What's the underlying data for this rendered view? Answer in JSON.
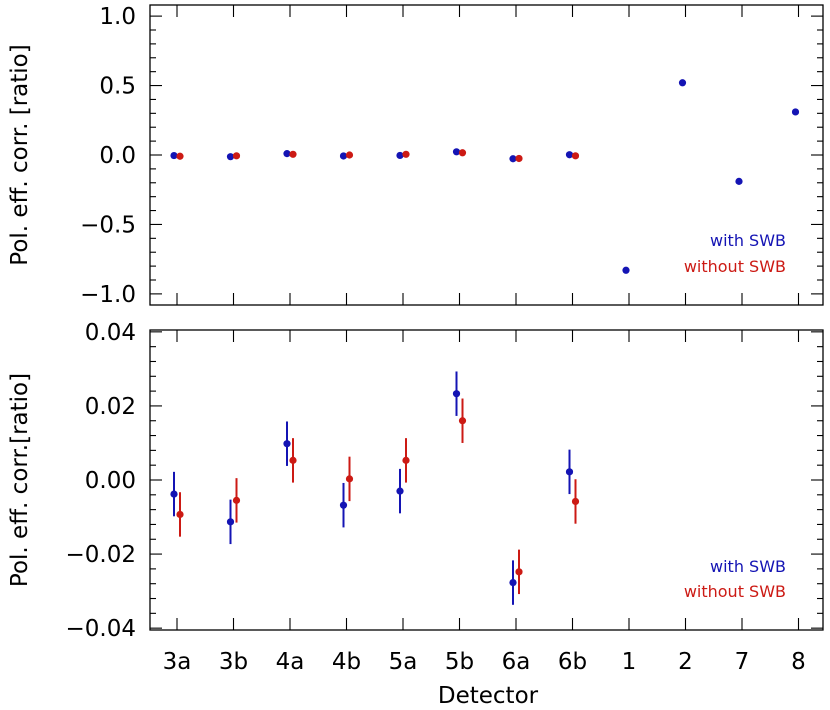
{
  "colors": {
    "with": "#1414b4",
    "without": "#cc1a14"
  },
  "chart_data": [
    {
      "type": "scatter",
      "panel": "top",
      "ylabel": "Pol. eff. corr. [ratio]",
      "xlabel": "",
      "ylim": [
        -1.08,
        1.08
      ],
      "yticks": [
        -1.0,
        -0.5,
        0.0,
        0.5,
        1.0
      ],
      "ytick_labels": [
        "−1.0",
        "−0.5",
        "0.0",
        "0.5",
        "1.0"
      ],
      "categories": [
        "3a",
        "3b",
        "4a",
        "4b",
        "5a",
        "5b",
        "6a",
        "6b",
        "1",
        "2",
        "7",
        "8"
      ],
      "legend": {
        "position": "bottom-right",
        "entries": [
          "with SWB",
          "without SWB"
        ]
      },
      "series": [
        {
          "name": "with SWB",
          "color_key": "with",
          "values": [
            -0.004,
            -0.012,
            0.01,
            -0.007,
            -0.003,
            0.023,
            -0.027,
            0.002,
            -0.83,
            0.52,
            -0.19,
            0.31
          ]
        },
        {
          "name": "without SWB",
          "color_key": "without",
          "values": [
            -0.009,
            -0.006,
            0.005,
            0.0,
            0.005,
            0.016,
            -0.025,
            -0.006,
            null,
            null,
            null,
            null
          ]
        }
      ]
    },
    {
      "type": "scatter",
      "panel": "bottom",
      "ylabel": "Pol. eff. corr.[ratio]",
      "xlabel": "Detector",
      "ylim": [
        -0.0405,
        0.0405
      ],
      "yticks": [
        -0.04,
        -0.02,
        0.0,
        0.02,
        0.04
      ],
      "ytick_labels": [
        "−0.04",
        "−0.02",
        "0.00",
        "0.02",
        "0.04"
      ],
      "categories": [
        "3a",
        "3b",
        "4a",
        "4b",
        "5a",
        "5b",
        "6a",
        "6b",
        "1",
        "2",
        "7",
        "8"
      ],
      "legend": {
        "position": "bottom-right",
        "entries": [
          "with SWB",
          "without SWB"
        ]
      },
      "series": [
        {
          "name": "with SWB",
          "color_key": "with",
          "values": [
            -0.0038,
            -0.0113,
            0.0098,
            -0.0068,
            -0.003,
            0.0233,
            -0.0277,
            0.0022,
            null,
            null,
            null,
            null
          ],
          "errors": [
            0.006,
            0.006,
            0.006,
            0.006,
            0.006,
            0.006,
            0.006,
            0.006,
            null,
            null,
            null,
            null
          ]
        },
        {
          "name": "without SWB",
          "color_key": "without",
          "values": [
            -0.0093,
            -0.0055,
            0.0053,
            0.0003,
            0.0053,
            0.016,
            -0.0248,
            -0.0058,
            null,
            null,
            null,
            null
          ],
          "errors": [
            0.006,
            0.006,
            0.006,
            0.006,
            0.006,
            0.006,
            0.006,
            0.006,
            null,
            null,
            null,
            null
          ]
        }
      ]
    }
  ]
}
